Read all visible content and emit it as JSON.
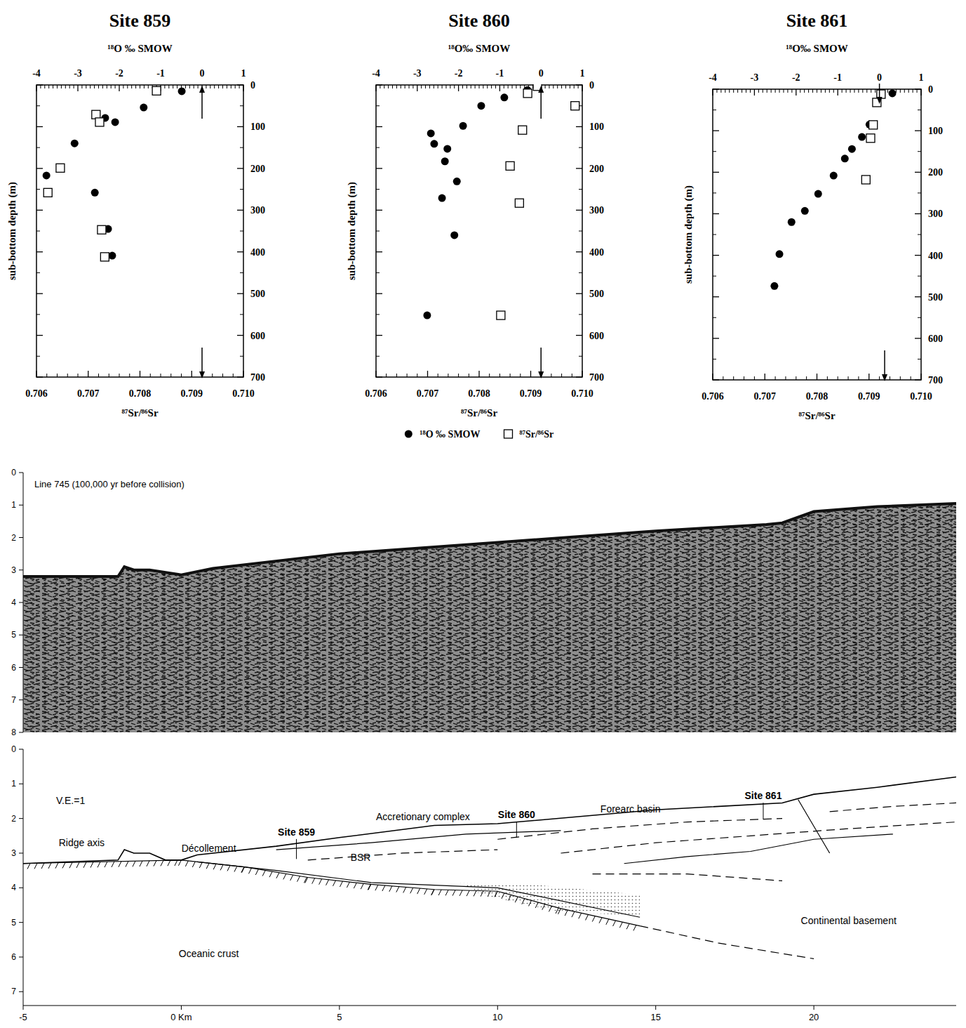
{
  "chart_data": [
    {
      "type": "scatter",
      "title": "Site 859",
      "xlabel": "¹⁸O ‰ SMOW",
      "x2label": "⁸⁷Sr/⁸⁶Sr",
      "ylabel": "sub-bottom depth (m)",
      "xlim": [
        -4,
        1
      ],
      "xticks": [
        -4,
        -3,
        -2,
        -1,
        0,
        1
      ],
      "x2lim": [
        0.706,
        0.71
      ],
      "x2ticks": [
        0.706,
        0.707,
        0.708,
        0.709,
        {
          "value": 0.71,
          "label": "0.710"
        }
      ],
      "ylim": [
        700,
        0
      ],
      "yticks": [
        0,
        100,
        200,
        300,
        400,
        500,
        600,
        700
      ],
      "grid": false,
      "series": [
        {
          "marker": "circle",
          "color": "#000000",
          "x": [
            -0.49,
            -1.41,
            -2.34,
            -2.1,
            -3.08,
            -3.76,
            -2.59,
            -2.27,
            -2.17
          ],
          "values": [
            15,
            54,
            79,
            89,
            140,
            217,
            258,
            345,
            409
          ]
        },
        {
          "marker": "square",
          "color": "#000000",
          "axis": "x2",
          "x": [
            0.70832,
            0.70715,
            0.70722,
            0.70646,
            0.70622,
            0.70726,
            0.70732
          ],
          "values": [
            14,
            71,
            89,
            199,
            258,
            347,
            412
          ]
        }
      ],
      "arrows": [
        {
          "axis": "x",
          "value": 0,
          "direction": "up"
        },
        {
          "axis": "x2",
          "value": 0.7092,
          "direction": "down"
        }
      ]
    },
    {
      "type": "scatter",
      "title": "Site 860",
      "xlabel": "¹⁸O‰ SMOW",
      "x2label": "⁸⁷Sr/⁸⁶Sr",
      "ylabel": "sub-bottom depth (m)",
      "xlim": [
        -4,
        1
      ],
      "xticks": [
        -4,
        -3,
        -2,
        -1,
        0,
        1
      ],
      "x2lim": [
        0.706,
        0.71
      ],
      "x2ticks": [
        0.706,
        0.707,
        0.708,
        0.709,
        {
          "value": 0.71,
          "label": "0.710"
        }
      ],
      "ylim": [
        700,
        0
      ],
      "yticks": [
        0,
        100,
        200,
        300,
        400,
        500,
        600,
        700
      ],
      "grid": false,
      "legend": "bottom",
      "series": [
        {
          "name": "¹⁸O ‰ SMOW",
          "marker": "circle",
          "color": "#000000",
          "x": [
            -0.33,
            -0.89,
            -1.45,
            -1.89,
            -2.67,
            -2.59,
            -2.27,
            -2.33,
            -2.04,
            -2.4,
            -2.1,
            -2.76
          ],
          "values": [
            12,
            30,
            50,
            98,
            116,
            141,
            153,
            183,
            231,
            271,
            360,
            552
          ]
        },
        {
          "name": "⁸⁷Sr/⁸⁶Sr",
          "marker": "square",
          "color": "#000000",
          "axis": "x2",
          "x": [
            0.70913,
            0.70894,
            0.70986,
            0.70884,
            0.7086,
            0.70878,
            0.70842
          ],
          "values": [
            3,
            20,
            50,
            108,
            194,
            283,
            552
          ]
        }
      ],
      "arrows": [
        {
          "axis": "x",
          "value": 0,
          "direction": "up"
        },
        {
          "axis": "x2",
          "value": 0.7092,
          "direction": "down"
        }
      ]
    },
    {
      "type": "scatter",
      "title": "Site 861",
      "xlabel": "¹⁸O‰ SMOW",
      "x2label": "⁸⁷Sr/⁸⁶Sr",
      "ylabel": "sub-bottom depth (m)",
      "xlim": [
        -4,
        1
      ],
      "xticks": [
        -4,
        -3,
        -2,
        -1,
        0,
        1
      ],
      "x2lim": [
        0.706,
        0.71
      ],
      "x2ticks": [
        0.706,
        0.707,
        0.708,
        0.709,
        {
          "value": 0.71,
          "label": "0.710"
        }
      ],
      "ylim": [
        700,
        0
      ],
      "yticks": [
        0,
        100,
        200,
        300,
        400,
        500,
        600,
        700
      ],
      "grid": false,
      "series": [
        {
          "marker": "circle",
          "color": "#000000",
          "x": [
            0.31,
            -0.24,
            -0.42,
            -0.66,
            -0.83,
            -1.1,
            -1.47,
            -1.79,
            -2.11,
            -2.4,
            -2.52
          ],
          "values": [
            10,
            85,
            115,
            144,
            167,
            208,
            252,
            293,
            320,
            397,
            474
          ]
        },
        {
          "marker": "square",
          "color": "#000000",
          "axis": "x2",
          "x": [
            0.70923,
            0.70915,
            0.70908,
            0.70903,
            0.70894
          ],
          "values": [
            12,
            32,
            86,
            118,
            218
          ]
        }
      ],
      "arrows": [
        {
          "axis": "x",
          "value": 0,
          "direction": "down"
        },
        {
          "axis": "x2",
          "value": 0.7093,
          "direction": "down"
        }
      ]
    },
    {
      "type": "seismic",
      "title": "Line 745  (100,000 yr before collision)",
      "xlim": [
        -5,
        24.5
      ],
      "ylim": [
        8,
        0
      ],
      "yticks": [
        0,
        1,
        2,
        3,
        4,
        5,
        6,
        7,
        8
      ],
      "tick_labels": "y",
      "seafloor": {
        "x": [
          -5,
          -2,
          -1.8,
          -1.5,
          -1,
          0,
          1,
          5,
          10,
          15,
          18.5,
          19,
          20,
          22,
          24.5
        ],
        "values": [
          3.2,
          3.2,
          2.9,
          3.0,
          3.0,
          3.15,
          2.95,
          2.5,
          2.15,
          1.8,
          1.6,
          1.55,
          1.2,
          1.05,
          0.95
        ]
      }
    },
    {
      "type": "cross_section",
      "xlim": [
        -5,
        24.5
      ],
      "ylim": [
        7.4,
        0
      ],
      "xticks": [
        -5,
        {
          "value": 0,
          "label": "0 Km"
        },
        5,
        10,
        15,
        20
      ],
      "yticks": [
        0,
        1,
        2,
        3,
        4,
        5,
        6,
        7
      ],
      "seafloor": {
        "x": [
          -5,
          -2,
          -1.8,
          -1.5,
          -1,
          -0.5,
          0,
          0.5,
          3,
          5,
          8,
          10,
          15,
          19,
          20,
          22,
          24.5
        ],
        "values": [
          3.3,
          3.2,
          2.9,
          3.0,
          3.0,
          3.2,
          3.2,
          3.05,
          2.8,
          2.55,
          2.2,
          2.15,
          1.75,
          1.55,
          1.3,
          1.1,
          0.8
        ]
      },
      "lines": [
        {
          "line_style": "hatched",
          "x": [
            -5,
            0,
            2,
            4,
            6,
            8,
            10,
            12,
            14.5
          ],
          "y": [
            3.3,
            3.2,
            3.4,
            3.7,
            3.9,
            4.05,
            4.1,
            4.6,
            5.1
          ]
        },
        {
          "line_style": "dashed",
          "x": [
            14.5,
            17,
            20
          ],
          "y": [
            5.1,
            5.6,
            6.05
          ]
        },
        {
          "line_style": "solid",
          "x": [
            0.5,
            3,
            6,
            10,
            14.5
          ],
          "y": [
            3.25,
            3.5,
            3.85,
            4.0,
            4.85
          ]
        },
        {
          "line_style": "solid",
          "x": [
            3,
            6,
            9,
            12
          ],
          "y": [
            2.9,
            2.7,
            2.45,
            2.35
          ]
        },
        {
          "line_style": "solid",
          "x": [
            14,
            16,
            18,
            20,
            22.5
          ],
          "y": [
            3.3,
            3.1,
            2.95,
            2.6,
            2.45
          ]
        },
        {
          "line_style": "solid",
          "x": [
            19.5,
            20.5
          ],
          "y": [
            1.45,
            3.0
          ]
        },
        {
          "line_style": "dashed",
          "x": [
            10,
            13,
            16,
            19
          ],
          "y": [
            2.6,
            2.3,
            2.1,
            2.0
          ]
        },
        {
          "line_style": "dashed",
          "x": [
            12,
            15,
            18,
            21,
            24.5
          ],
          "y": [
            3.0,
            2.7,
            2.5,
            2.3,
            2.1
          ]
        },
        {
          "line_style": "dashed",
          "x": [
            20.5,
            22.5,
            24.5
          ],
          "y": [
            1.8,
            1.65,
            1.55
          ]
        },
        {
          "line_style": "dashed",
          "x": [
            4,
            7,
            10
          ],
          "y": [
            3.2,
            3.0,
            2.9
          ]
        },
        {
          "line_style": "dashed",
          "x": [
            13,
            16,
            19
          ],
          "y": [
            3.6,
            3.6,
            3.8
          ]
        }
      ],
      "stipple": {
        "x": [
          8.8,
          11,
          14.5,
          14.5,
          12,
          9.5
        ],
        "y": [
          3.85,
          3.9,
          4.2,
          4.8,
          4.7,
          4.2
        ]
      },
      "annotations": [
        {
          "text": "V.E.=1",
          "x": -3.5,
          "y": 1.48
        },
        {
          "text": "Ridge axis",
          "x": -3.15,
          "y": 2.7
        },
        {
          "text": "Décollement",
          "x": 0.87,
          "y": 2.86
        },
        {
          "text": "Site 859",
          "x": 3.64,
          "y": 2.39,
          "kind": "site"
        },
        {
          "text": "Accretionary complex",
          "x": 7.64,
          "y": 1.95
        },
        {
          "text": "Site 860",
          "x": 10.6,
          "y": 1.89,
          "kind": "site"
        },
        {
          "text": "BSR",
          "x": 5.67,
          "y": 3.12
        },
        {
          "text": "Forearc basin",
          "x": 14.2,
          "y": 1.72
        },
        {
          "text": "Site 861",
          "x": 18.4,
          "y": 1.34,
          "kind": "site"
        },
        {
          "text": "Oceanic crust",
          "x": 0.87,
          "y": 5.9
        },
        {
          "text": "Continental basement",
          "x": 21.1,
          "y": 4.95
        }
      ]
    }
  ]
}
